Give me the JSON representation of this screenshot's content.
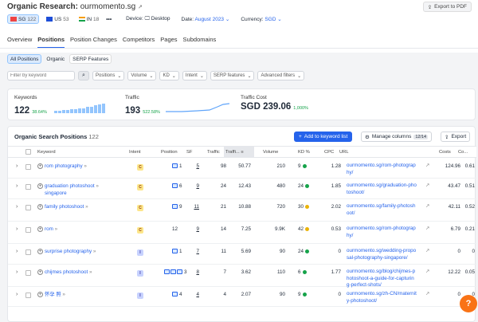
{
  "header": {
    "title": "Organic Research:",
    "domain": "ourmomento.sg",
    "export_label": "Export to PDF"
  },
  "databases": [
    {
      "code": "SG",
      "count": "122",
      "color": "#ef4444"
    },
    {
      "code": "US",
      "count": "53",
      "color": "#1d4ed8"
    },
    {
      "code": "IN",
      "count": "18",
      "color": "#f59e0b"
    }
  ],
  "more_label": "•••",
  "device": {
    "label": "Device:",
    "value": "Desktop"
  },
  "date": {
    "label": "Date:",
    "value": "August 2023"
  },
  "currency": {
    "label": "Currency:",
    "value": "SGD"
  },
  "tabs": [
    "Overview",
    "Positions",
    "Position Changes",
    "Competitors",
    "Pages",
    "Subdomains"
  ],
  "subtabs": [
    "All Positions",
    "Organic",
    "SERP Features"
  ],
  "filters": {
    "search_placeholder": "Filter by keyword",
    "positions": "Positions",
    "volume": "Volume",
    "kd": "KD",
    "intent": "Intent",
    "serp": "SERP features",
    "advanced": "Advanced filters"
  },
  "cards": {
    "keywords": {
      "label": "Keywords",
      "value": "122",
      "change": "38.64%"
    },
    "traffic": {
      "label": "Traffic",
      "value": "193",
      "change": "522.58%"
    },
    "cost": {
      "label": "Traffic Cost",
      "value": "SGD 239.06",
      "change": "1,000%"
    }
  },
  "table": {
    "title": "Organic Search Positions",
    "count": "122",
    "add_label": "Add to keyword list",
    "manage_label": "Manage columns",
    "manage_count": "12/14",
    "export_label": "Export",
    "columns": {
      "keyword": "Keyword",
      "intent": "Intent",
      "position": "Position",
      "sf": "SF",
      "traffic": "Traffic",
      "traffic_pct": "Traffi...",
      "volume": "Volume",
      "kd": "KD %",
      "cpc": "CPC",
      "url": "URL",
      "costs": "Costs",
      "com": "Co..."
    },
    "rows": [
      {
        "keyword": "rom photography",
        "intent": "C",
        "position": "1",
        "sf": "5",
        "traffic": "98",
        "traffic_pct": "50.77",
        "volume": "210",
        "kd": "9",
        "kd_color": "#16a34a",
        "cpc": "1.28",
        "url1": "ourmomento.sg/rom-photograp",
        "url2": "hy/",
        "url3": "",
        "costs": "124.96",
        "com": "0.61"
      },
      {
        "keyword": "graduation photoshoot",
        "keyword2": "singapore",
        "intent": "C",
        "position": "6",
        "sf": "9",
        "traffic": "24",
        "traffic_pct": "12.43",
        "volume": "480",
        "kd": "24",
        "kd_color": "#16a34a",
        "cpc": "1.85",
        "url1": "ourmomento.sg/graduation-pho",
        "url2": "toshoot/",
        "url3": "",
        "costs": "43.47",
        "com": "0.51"
      },
      {
        "keyword": "family photoshoot",
        "intent": "C",
        "position": "9",
        "sf": "11",
        "traffic": "21",
        "traffic_pct": "10.88",
        "volume": "720",
        "kd": "30",
        "kd_color": "#eab308",
        "cpc": "2.02",
        "url1": "ourmomento.sg/family-photosh",
        "url2": "oot/",
        "url3": "",
        "costs": "42.11",
        "com": "0.52"
      },
      {
        "keyword": "rom",
        "intent": "C",
        "position": "12",
        "sf": "9",
        "traffic": "14",
        "traffic_pct": "7.25",
        "volume": "9.9K",
        "kd": "42",
        "kd_color": "#eab308",
        "cpc": "0.53",
        "url1": "ourmomento.sg/rom-photograp",
        "url2": "hy/",
        "url3": "",
        "costs": "6.79",
        "com": "0.21"
      },
      {
        "keyword": "surprise photography",
        "intent": "I",
        "position": "1",
        "sf": "7",
        "traffic": "11",
        "traffic_pct": "5.69",
        "volume": "90",
        "kd": "24",
        "kd_color": "#16a34a",
        "cpc": "0",
        "url1": "ourmomento.sg/wedding-propo",
        "url2": "sal-photography-singapore/",
        "url3": "",
        "costs": "0",
        "com": "0"
      },
      {
        "keyword": "chijmes photoshoot",
        "intent": "I",
        "position": "3",
        "sf": "8",
        "traffic": "7",
        "traffic_pct": "3.62",
        "volume": "110",
        "kd": "6",
        "kd_color": "#16a34a",
        "cpc": "1.77",
        "url1": "ourmomento.sg/blog/chijmes-p",
        "url2": "hotoshoot-a-guide-for-capturin",
        "url3": "g-perfect-shots/",
        "costs": "12.22",
        "com": "0.05"
      },
      {
        "keyword": "怀孕 照",
        "intent": "I",
        "position": "4",
        "sf": "4",
        "traffic": "4",
        "traffic_pct": "2.07",
        "volume": "90",
        "kd": "9",
        "kd_color": "#16a34a",
        "cpc": "0",
        "url1": "ourmomento.sg/zh-CN/maternit",
        "url2": "y-photoshoot/",
        "url3": "",
        "costs": "0",
        "com": "0"
      }
    ]
  },
  "help_label": "?",
  "colors": {
    "accent": "#2563eb",
    "green": "#16a34a",
    "orange": "#f97316"
  }
}
